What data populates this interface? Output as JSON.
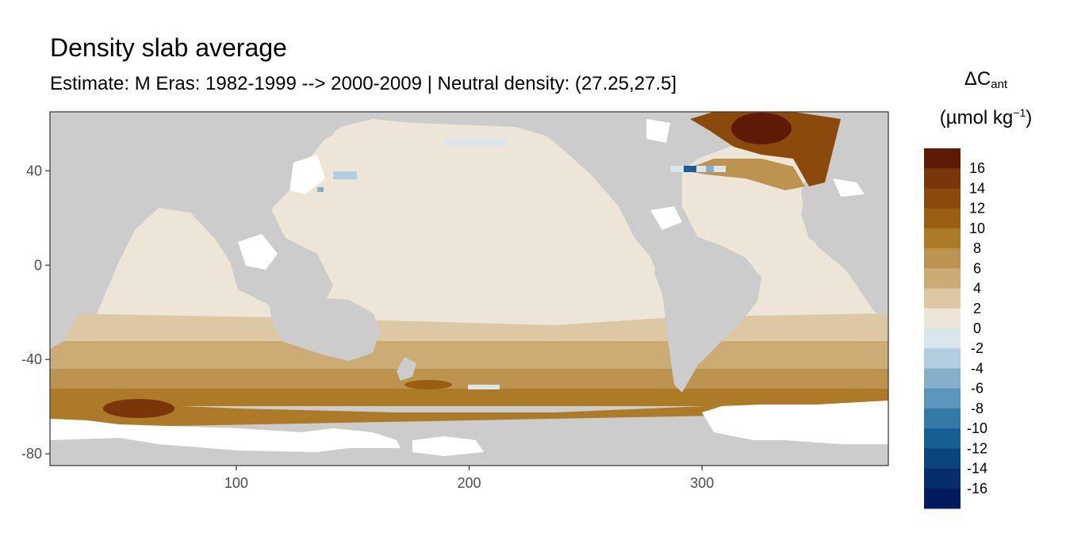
{
  "title": "Density slab average",
  "subtitle": "Estimate: M Eras: 1982-1999 --> 2000-2009 | Neutral density: (27.25,27.5]",
  "legend": {
    "symbol": "ΔC",
    "symbol_sub": "ant",
    "unit_open": "(µmol kg",
    "unit_sup": "−1",
    "unit_close": ")",
    "breaks": [
      "16",
      "14",
      "12",
      "10",
      "8",
      "6",
      "4",
      "2",
      "0",
      "-2",
      "-4",
      "-6",
      "-8",
      "-10",
      "-12",
      "-14",
      "-16"
    ],
    "colors": [
      "#5e1a04",
      "#7a3508",
      "#8c490c",
      "#9b5d12",
      "#ad7a27",
      "#bd9350",
      "#ccab75",
      "#dcc8a2",
      "#ede5d7",
      "#dbe6ec",
      "#b3cee1",
      "#84b0cc",
      "#5c96bd",
      "#3579a8",
      "#155f95",
      "#0b457f",
      "#062e6d",
      "#041a5e"
    ]
  },
  "chart_data": {
    "type": "heatmap",
    "title": "Density slab average",
    "subtitle": "Estimate: M Eras: 1982-1999 --> 2000-2009 | Neutral density: (27.25,27.5]",
    "x_ticks": [
      "100",
      "200",
      "300"
    ],
    "y_ticks": [
      "40",
      "0",
      "-40",
      "-80"
    ],
    "xlim": [
      20,
      380
    ],
    "ylim": [
      -85,
      65
    ],
    "grid": false,
    "legend_position": "right",
    "land_color": "#cccccc",
    "nodata_color": "#ffffff",
    "regions": [
      {
        "name": "Pacific interior",
        "value": 1
      },
      {
        "name": "Indian Ocean interior",
        "value": 1
      },
      {
        "name": "Atlantic interior",
        "value": 2
      },
      {
        "name": "Southern Ocean band (40-60S)",
        "value": 7
      },
      {
        "name": "Southern Ocean peak (60S, 50-70E)",
        "value": 15
      },
      {
        "name": "North Atlantic subpolar",
        "value": 16
      },
      {
        "name": "Kuroshio extension spots",
        "value": -3
      },
      {
        "name": "Gulf Stream spots",
        "value": -12
      }
    ]
  }
}
